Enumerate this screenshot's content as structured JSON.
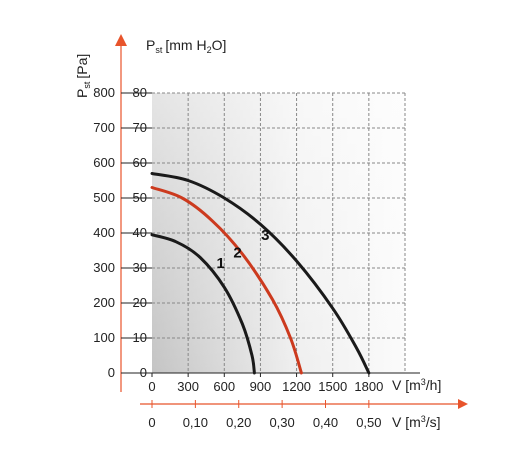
{
  "chart_data": {
    "type": "line",
    "y_axis_left": {
      "title": "P",
      "title_sub": "st",
      "title_unit": "[Pa]",
      "ticks": [
        "0",
        "100",
        "200",
        "300",
        "400",
        "500",
        "600",
        "700",
        "800"
      ],
      "range": [
        0,
        800
      ]
    },
    "y_axis_right": {
      "title": "P",
      "title_sub": "st",
      "title_unit_pre": "[mm H",
      "title_unit_sub": "2",
      "title_unit_post": "O]",
      "ticks": [
        "0",
        "10",
        "20",
        "30",
        "40",
        "50",
        "60",
        "70",
        "80"
      ],
      "range": [
        0,
        80
      ]
    },
    "x_axis_primary": {
      "title_pre": "V [m",
      "title_sup": "3",
      "title_post": "/h]",
      "ticks": [
        "0",
        "300",
        "600",
        "900",
        "1200",
        "1500",
        "1800"
      ],
      "range": [
        0,
        2100
      ]
    },
    "x_axis_secondary": {
      "title_pre": "V [m",
      "title_sup": "3",
      "title_post": "/s]",
      "ticks": [
        "0",
        "0,10",
        "0,20",
        "0,30",
        "0,40",
        "0,50"
      ],
      "tick_values": [
        0,
        0.1,
        0.2,
        0.3,
        0.4,
        0.5
      ],
      "range": [
        0,
        0.5833
      ]
    },
    "grid": true,
    "series": [
      {
        "name": "1",
        "color": "#1a1a1a",
        "points": [
          [
            0,
            395
          ],
          [
            200,
            375
          ],
          [
            400,
            330
          ],
          [
            600,
            245
          ],
          [
            750,
            140
          ],
          [
            830,
            50
          ],
          [
            850,
            0
          ]
        ]
      },
      {
        "name": "2",
        "color": "#cc3a1e",
        "points": [
          [
            0,
            530
          ],
          [
            250,
            500
          ],
          [
            500,
            435
          ],
          [
            750,
            340
          ],
          [
            1000,
            210
          ],
          [
            1150,
            100
          ],
          [
            1240,
            0
          ]
        ]
      },
      {
        "name": "3",
        "color": "#1a1a1a",
        "points": [
          [
            0,
            570
          ],
          [
            300,
            550
          ],
          [
            600,
            500
          ],
          [
            900,
            425
          ],
          [
            1200,
            320
          ],
          [
            1500,
            185
          ],
          [
            1700,
            70
          ],
          [
            1800,
            0
          ]
        ]
      }
    ],
    "colors": {
      "accent": "#cc3a1e",
      "axis": "#e8542b",
      "grid": "#888888"
    }
  }
}
